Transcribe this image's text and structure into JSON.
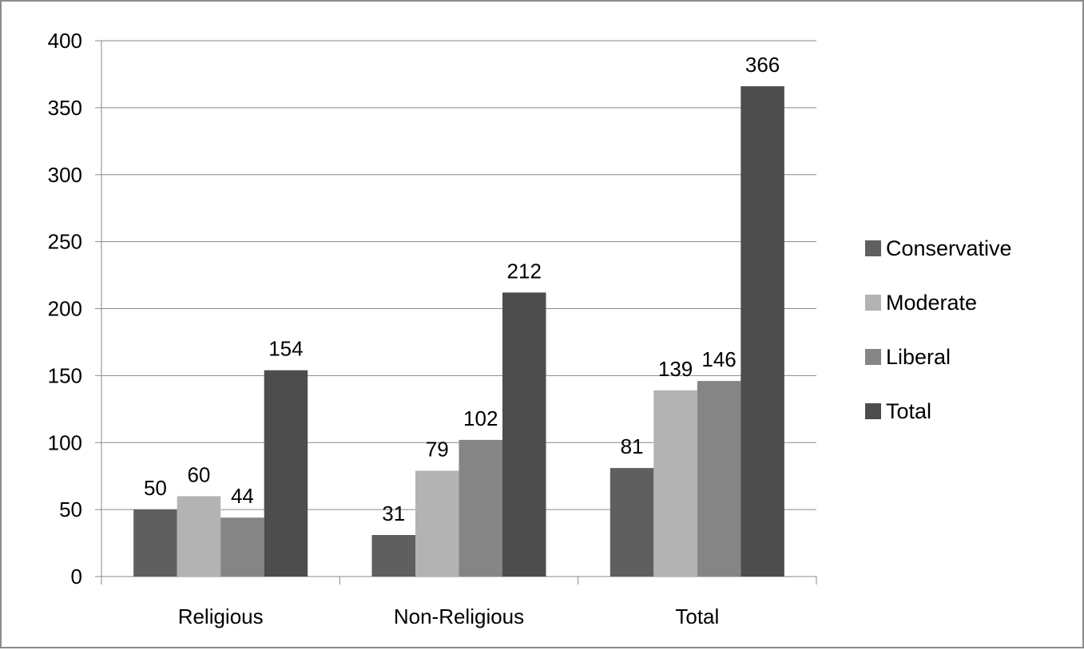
{
  "chart_data": {
    "type": "bar",
    "categories": [
      "Religious",
      "Non-Religious",
      "Total"
    ],
    "series": [
      {
        "name": "Conservative",
        "color": "#5f5f5f",
        "values": [
          50,
          31,
          81
        ]
      },
      {
        "name": "Moderate",
        "color": "#b3b3b3",
        "values": [
          60,
          79,
          139
        ]
      },
      {
        "name": "Liberal",
        "color": "#858585",
        "values": [
          44,
          102,
          146
        ]
      },
      {
        "name": "Total",
        "color": "#4d4d4d",
        "values": [
          154,
          212,
          366
        ]
      }
    ],
    "ylim": [
      0,
      400
    ],
    "yticks": [
      "0",
      "50",
      "100",
      "150",
      "200",
      "250",
      "300",
      "350",
      "400"
    ],
    "grid": true,
    "legend_position": "right",
    "data_labels": true
  }
}
